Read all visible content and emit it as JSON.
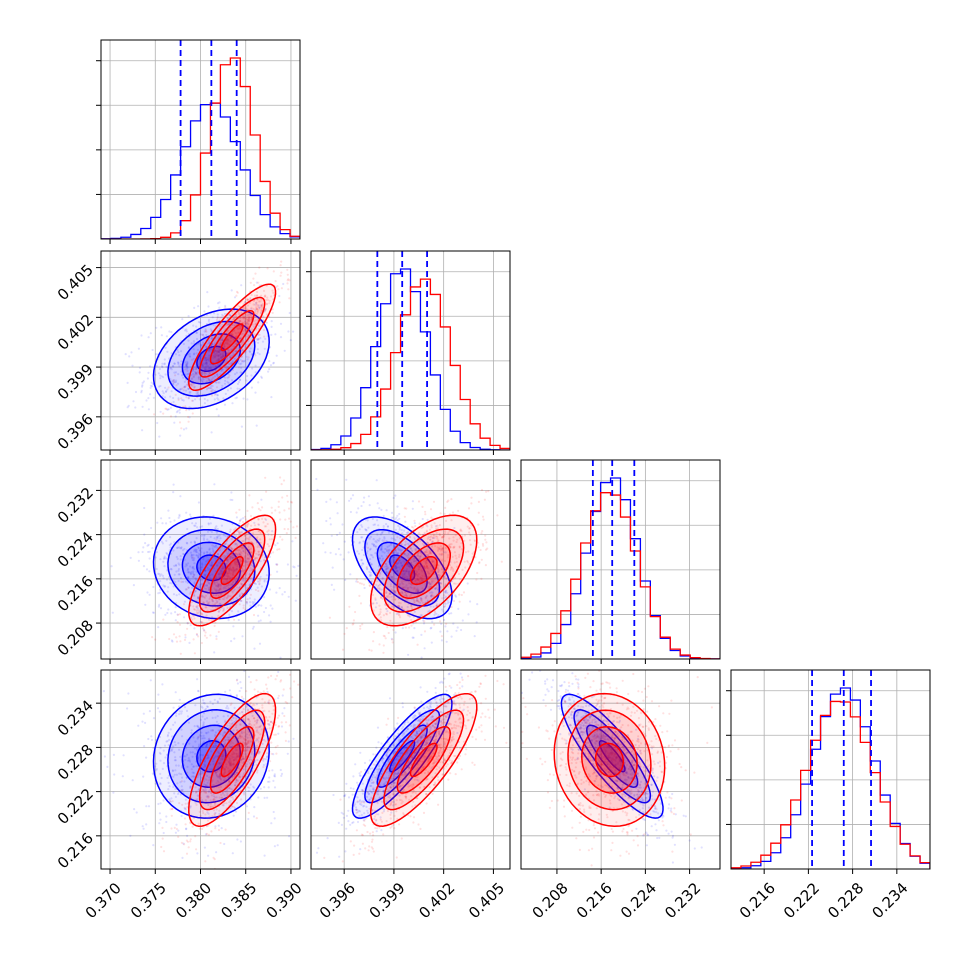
{
  "chart_data": {
    "type": "corner",
    "colors": {
      "series_a": "#0000ff",
      "series_b": "#ff0000",
      "grid": "#b0b0b0"
    },
    "grid": true,
    "series": [
      {
        "color": "#0000ff",
        "mean": [
          0.3812,
          0.3995,
          0.218,
          0.2268
        ],
        "std": [
          0.0032,
          0.0015,
          0.0046,
          0.0042
        ],
        "quantiles": [
          [
            0.3778,
            0.3812,
            0.384
          ],
          [
            0.398,
            0.3995,
            0.401
          ],
          [
            0.2145,
            0.218,
            0.222
          ],
          [
            0.2225,
            0.2268,
            0.2305
          ]
        ]
      },
      {
        "color": "#ff0000",
        "mean": [
          0.3835,
          0.4008,
          0.2175,
          0.2263
        ],
        "std": [
          0.0024,
          0.0016,
          0.005,
          0.0045
        ]
      }
    ],
    "params": [
      {
        "ticks": [
          "0.370",
          "0.375",
          "0.380",
          "0.385",
          "0.390"
        ],
        "tick_values": [
          0.37,
          0.375,
          0.38,
          0.385,
          0.39
        ],
        "range": [
          0.369,
          0.391
        ]
      },
      {
        "ticks": [
          "0.396",
          "0.399",
          "0.402",
          "0.405"
        ],
        "tick_values": [
          0.396,
          0.399,
          0.402,
          0.405
        ],
        "range": [
          0.394,
          0.406
        ]
      },
      {
        "ticks": [
          "0.208",
          "0.216",
          "0.224",
          "0.232"
        ],
        "tick_values": [
          0.208,
          0.216,
          0.224,
          0.232
        ],
        "range": [
          0.2015,
          0.2375
        ]
      },
      {
        "ticks": [
          "0.216",
          "0.222",
          "0.228",
          "0.234"
        ],
        "tick_values": [
          0.216,
          0.222,
          0.228,
          0.234
        ],
        "range": [
          0.2115,
          0.2385
        ]
      }
    ],
    "pairs": [
      {
        "row": 1,
        "col": 0,
        "corr_a": 0.35,
        "corr_b": 0.85
      },
      {
        "row": 2,
        "col": 0,
        "corr_a": -0.1,
        "corr_b": 0.75
      },
      {
        "row": 2,
        "col": 1,
        "corr_a": -0.55,
        "corr_b": 0.55
      },
      {
        "row": 3,
        "col": 0,
        "corr_a": 0.1,
        "corr_b": 0.75
      },
      {
        "row": 3,
        "col": 1,
        "corr_a": 0.85,
        "corr_b": 0.8
      },
      {
        "row": 3,
        "col": 2,
        "corr_a": -0.85,
        "corr_b": -0.1
      }
    ]
  }
}
